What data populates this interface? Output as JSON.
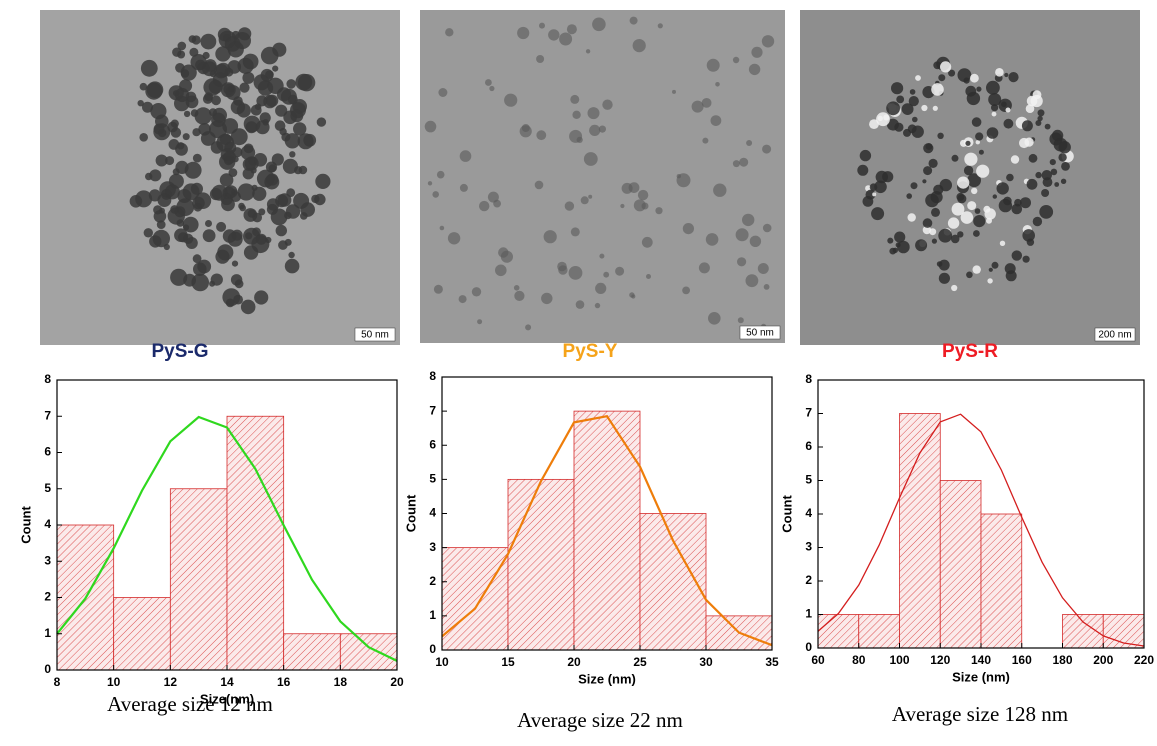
{
  "chart_data": [
    {
      "type": "histogram",
      "title": "PyS-G",
      "title_color": "#1b2a6b",
      "scale_bar_label": "50 nm",
      "caption": "Average size 12 nm",
      "xlabel": "Size(nm)",
      "ylabel": "Count",
      "bins": [
        8,
        10,
        12,
        14,
        16,
        18,
        20
      ],
      "values": [
        4,
        2,
        5,
        7,
        1,
        1
      ],
      "color": "#d42a2a",
      "fit_x": [
        8,
        9,
        10,
        11,
        12,
        13,
        14,
        15,
        16,
        17,
        18,
        19,
        20
      ],
      "fit_values": [
        1.0,
        1.97,
        3.36,
        4.95,
        6.31,
        6.98,
        6.69,
        5.55,
        3.99,
        2.49,
        1.34,
        0.63,
        0.25
      ],
      "fit_color": "#2fd81e",
      "xlim": [
        8,
        20
      ],
      "ylim": [
        0,
        8
      ],
      "xticks": [
        8,
        10,
        12,
        14,
        16,
        18,
        20
      ],
      "yticks": [
        0,
        1,
        2,
        3,
        4,
        5,
        6,
        7,
        8
      ]
    },
    {
      "type": "histogram",
      "title": "PyS-Y",
      "title_color": "#f5a31a",
      "scale_bar_label": "50 nm",
      "caption": "Average size 22  nm",
      "xlabel": "Size (nm)",
      "ylabel": "Count",
      "bins": [
        10,
        15,
        20,
        25,
        30,
        35
      ],
      "values": [
        3,
        5,
        7,
        4,
        1
      ],
      "color": "#d42a2a",
      "fit_x": [
        10,
        12.5,
        15,
        17.5,
        20,
        22.5,
        25,
        27.5,
        30,
        32.5,
        35
      ],
      "fit_values": [
        0.4,
        1.21,
        2.81,
        4.95,
        6.67,
        6.85,
        5.37,
        3.21,
        1.47,
        0.51,
        0.14
      ],
      "fit_color": "#ee7d0a",
      "xlim": [
        10,
        35
      ],
      "ylim": [
        0,
        8
      ],
      "xticks": [
        10,
        15,
        20,
        25,
        30,
        35
      ],
      "yticks": [
        0,
        1,
        2,
        3,
        4,
        5,
        6,
        7,
        8
      ]
    },
    {
      "type": "histogram",
      "title": "PyS-R",
      "title_color": "#ee1c24",
      "scale_bar_label": "200 nm",
      "caption": "Average size 128 nm",
      "xlabel": "Size (nm)",
      "ylabel": "Count",
      "bins": [
        60,
        80,
        100,
        120,
        140,
        160,
        180,
        200,
        220
      ],
      "values": [
        1,
        1,
        7,
        5,
        4,
        0,
        1,
        1
      ],
      "color": "#d42a2a",
      "fit_x": [
        60,
        70,
        80,
        90,
        100,
        110,
        120,
        130,
        140,
        150,
        160,
        170,
        180,
        190,
        200,
        210,
        220
      ],
      "fit_values": [
        0.5,
        1.03,
        1.88,
        3.07,
        4.48,
        5.82,
        6.75,
        6.98,
        6.45,
        5.31,
        3.9,
        2.56,
        1.5,
        0.78,
        0.36,
        0.15,
        0.06
      ],
      "fit_color": "#d41e1e",
      "xlim": [
        60,
        220
      ],
      "ylim": [
        0,
        8
      ],
      "xticks": [
        60,
        80,
        100,
        120,
        140,
        160,
        180,
        200,
        220
      ],
      "yticks": [
        0,
        1,
        2,
        3,
        4,
        5,
        6,
        7,
        8
      ]
    }
  ]
}
